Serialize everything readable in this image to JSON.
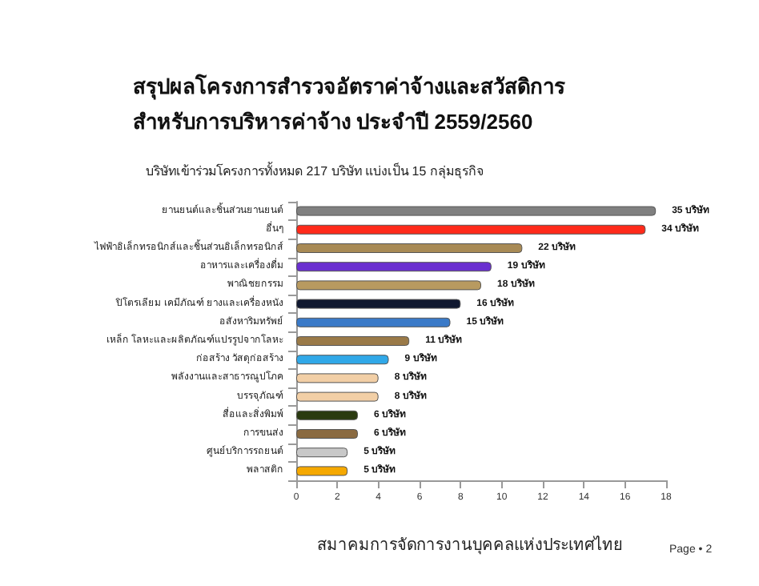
{
  "chart_data": {
    "type": "bar",
    "orientation": "horizontal",
    "title": "สรุปผลโครงการสำรวจอัตราค่าจ้างและสวัสดิการ\nสำหรับการบริหารค่าจ้าง ประจำปี 2559/2560",
    "subtitle": "บริษัทเข้าร่วมโครงการทั้งหมด 217 บริษัท แบ่งเป็น 15 กลุ่มธุรกิจ",
    "categories": [
      "ยานยนต์และชิ้นส่วนยานยนต์",
      "อื่นๆ",
      "ไฟฟ้าอิเล็กทรอนิกส์และชิ้นส่วนอิเล็กทรอนิกส์",
      "อาหารและเครื่องดื่ม",
      "พาณิชยกรรม",
      "ปิโตรเลียม เคมีภัณฑ์ ยางและเครื่องหนัง",
      "อสังหาริมทรัพย์",
      "เหล็ก โลหะและผลิตภัณฑ์แปรรูปจากโลหะ",
      "ก่อสร้าง วัสดุก่อสร้าง",
      "พลังงานและสาธารณูปโภค",
      "บรรจุภัณฑ์",
      "สื่อและสิ่งพิมพ์",
      "การขนส่ง",
      "ศูนย์บริการรถยนต์",
      "พลาสติก"
    ],
    "values": [
      17.5,
      17,
      11,
      9.5,
      9,
      8,
      7.5,
      5.5,
      4.5,
      4,
      4,
      3,
      3,
      2.5,
      2.5
    ],
    "colors": [
      "#808080",
      "#ff2a1a",
      "#a88a55",
      "#6a2fd0",
      "#b89a60",
      "#101830",
      "#3a7ac8",
      "#9a7a48",
      "#30a8e8",
      "#f2cfa6",
      "#f2cfa6",
      "#2a3a10",
      "#8a6a40",
      "#c8c8c8",
      "#f5a800"
    ],
    "xlim": [
      0,
      18
    ],
    "xticks": [
      0,
      2,
      4,
      6,
      8,
      10,
      12,
      14,
      16,
      18
    ],
    "grid": false,
    "annotations": [
      "สมาคมการจัดการงานบุคคลแห่งประเทศไทย",
      "Page • 2",
      {
        "text": "35 บริษัท",
        "x": 17.5,
        "y": "ยานยนต์และชิ้นส่วนยานยนต์"
      },
      {
        "text": "34 บริษัท",
        "x": 17,
        "y": "อื่นๆ"
      },
      {
        "text": "22 บริษัท",
        "x": 11,
        "y": "ไฟฟ้าอิเล็กทรอนิกส์และชิ้นส่วนอิเล็กทรอนิกส์"
      },
      {
        "text": "19 บริษัท",
        "x": 9.5,
        "y": "อาหารและเครื่องดื่ม"
      },
      {
        "text": "18 บริษัท",
        "x": 9,
        "y": "พาณิชยกรรม"
      },
      {
        "text": "16 บริษัท",
        "x": 8,
        "y": "ปิโตรเลียม เคมีภัณฑ์ ยางและเครื่องหนัง"
      },
      {
        "text": "15 บริษัท",
        "x": 7.5,
        "y": "อสังหาริมทรัพย์"
      },
      {
        "text": "11 บริษัท",
        "x": 5.5,
        "y": "เหล็ก โลหะและผลิตภัณฑ์แปรรูปจากโลหะ"
      },
      {
        "text": "9 บริษัท",
        "x": 4.5,
        "y": "ก่อสร้าง วัสดุก่อสร้าง"
      },
      {
        "text": "8 บริษัท",
        "x": 4,
        "y": "พลังงานและสาธารณูปโภค"
      },
      {
        "text": "8 บริษัท",
        "x": 4,
        "y": "บรรจุภัณฑ์"
      },
      {
        "text": "6 บริษัท",
        "x": 3,
        "y": "สื่อและสิ่งพิมพ์"
      },
      {
        "text": "6 บริษัท",
        "x": 3,
        "y": "การขนส่ง"
      },
      {
        "text": "5 บริษัท",
        "x": 2.5,
        "y": "ศูนย์บริการรถยนต์"
      },
      {
        "text": "5 บริษัท",
        "x": 2.5,
        "y": "พลาสติก"
      }
    ]
  }
}
